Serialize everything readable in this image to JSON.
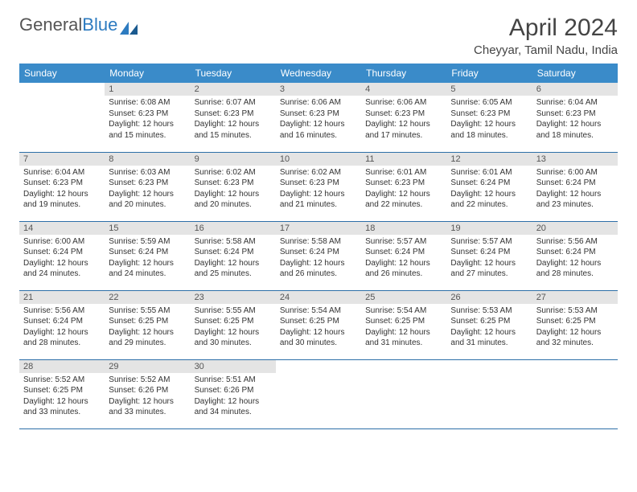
{
  "brand": {
    "part1": "General",
    "part2": "Blue"
  },
  "title": "April 2024",
  "location": "Cheyyar, Tamil Nadu, India",
  "colors": {
    "header_bg": "#3a8bc9",
    "header_text": "#ffffff",
    "daynum_bg": "#e4e4e4",
    "border": "#2d6fa8",
    "text": "#333333"
  },
  "weekdays": [
    "Sunday",
    "Monday",
    "Tuesday",
    "Wednesday",
    "Thursday",
    "Friday",
    "Saturday"
  ],
  "weeks": [
    [
      null,
      {
        "n": "1",
        "sr": "6:08 AM",
        "ss": "6:23 PM",
        "dl": "12 hours and 15 minutes."
      },
      {
        "n": "2",
        "sr": "6:07 AM",
        "ss": "6:23 PM",
        "dl": "12 hours and 15 minutes."
      },
      {
        "n": "3",
        "sr": "6:06 AM",
        "ss": "6:23 PM",
        "dl": "12 hours and 16 minutes."
      },
      {
        "n": "4",
        "sr": "6:06 AM",
        "ss": "6:23 PM",
        "dl": "12 hours and 17 minutes."
      },
      {
        "n": "5",
        "sr": "6:05 AM",
        "ss": "6:23 PM",
        "dl": "12 hours and 18 minutes."
      },
      {
        "n": "6",
        "sr": "6:04 AM",
        "ss": "6:23 PM",
        "dl": "12 hours and 18 minutes."
      }
    ],
    [
      {
        "n": "7",
        "sr": "6:04 AM",
        "ss": "6:23 PM",
        "dl": "12 hours and 19 minutes."
      },
      {
        "n": "8",
        "sr": "6:03 AM",
        "ss": "6:23 PM",
        "dl": "12 hours and 20 minutes."
      },
      {
        "n": "9",
        "sr": "6:02 AM",
        "ss": "6:23 PM",
        "dl": "12 hours and 20 minutes."
      },
      {
        "n": "10",
        "sr": "6:02 AM",
        "ss": "6:23 PM",
        "dl": "12 hours and 21 minutes."
      },
      {
        "n": "11",
        "sr": "6:01 AM",
        "ss": "6:23 PM",
        "dl": "12 hours and 22 minutes."
      },
      {
        "n": "12",
        "sr": "6:01 AM",
        "ss": "6:24 PM",
        "dl": "12 hours and 22 minutes."
      },
      {
        "n": "13",
        "sr": "6:00 AM",
        "ss": "6:24 PM",
        "dl": "12 hours and 23 minutes."
      }
    ],
    [
      {
        "n": "14",
        "sr": "6:00 AM",
        "ss": "6:24 PM",
        "dl": "12 hours and 24 minutes."
      },
      {
        "n": "15",
        "sr": "5:59 AM",
        "ss": "6:24 PM",
        "dl": "12 hours and 24 minutes."
      },
      {
        "n": "16",
        "sr": "5:58 AM",
        "ss": "6:24 PM",
        "dl": "12 hours and 25 minutes."
      },
      {
        "n": "17",
        "sr": "5:58 AM",
        "ss": "6:24 PM",
        "dl": "12 hours and 26 minutes."
      },
      {
        "n": "18",
        "sr": "5:57 AM",
        "ss": "6:24 PM",
        "dl": "12 hours and 26 minutes."
      },
      {
        "n": "19",
        "sr": "5:57 AM",
        "ss": "6:24 PM",
        "dl": "12 hours and 27 minutes."
      },
      {
        "n": "20",
        "sr": "5:56 AM",
        "ss": "6:24 PM",
        "dl": "12 hours and 28 minutes."
      }
    ],
    [
      {
        "n": "21",
        "sr": "5:56 AM",
        "ss": "6:24 PM",
        "dl": "12 hours and 28 minutes."
      },
      {
        "n": "22",
        "sr": "5:55 AM",
        "ss": "6:25 PM",
        "dl": "12 hours and 29 minutes."
      },
      {
        "n": "23",
        "sr": "5:55 AM",
        "ss": "6:25 PM",
        "dl": "12 hours and 30 minutes."
      },
      {
        "n": "24",
        "sr": "5:54 AM",
        "ss": "6:25 PM",
        "dl": "12 hours and 30 minutes."
      },
      {
        "n": "25",
        "sr": "5:54 AM",
        "ss": "6:25 PM",
        "dl": "12 hours and 31 minutes."
      },
      {
        "n": "26",
        "sr": "5:53 AM",
        "ss": "6:25 PM",
        "dl": "12 hours and 31 minutes."
      },
      {
        "n": "27",
        "sr": "5:53 AM",
        "ss": "6:25 PM",
        "dl": "12 hours and 32 minutes."
      }
    ],
    [
      {
        "n": "28",
        "sr": "5:52 AM",
        "ss": "6:25 PM",
        "dl": "12 hours and 33 minutes."
      },
      {
        "n": "29",
        "sr": "5:52 AM",
        "ss": "6:26 PM",
        "dl": "12 hours and 33 minutes."
      },
      {
        "n": "30",
        "sr": "5:51 AM",
        "ss": "6:26 PM",
        "dl": "12 hours and 34 minutes."
      },
      null,
      null,
      null,
      null
    ]
  ],
  "labels": {
    "sunrise": "Sunrise:",
    "sunset": "Sunset:",
    "daylight": "Daylight:"
  }
}
